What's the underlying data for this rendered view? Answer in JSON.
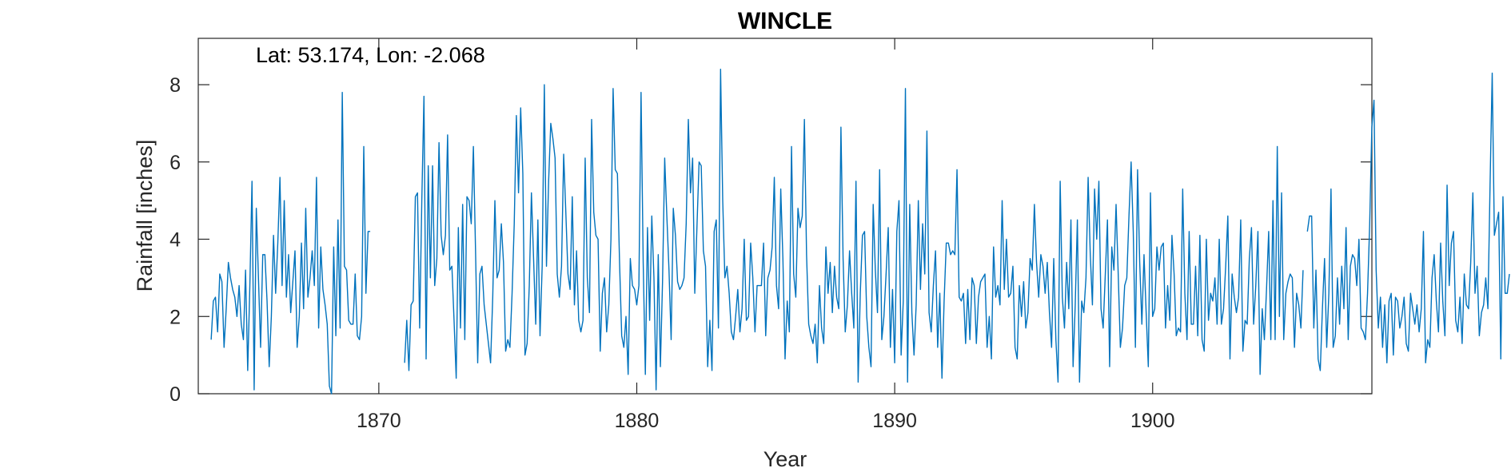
{
  "chart_data": {
    "type": "line",
    "title": "WINCLE",
    "annotation": "Lat: 53.174, Lon: -2.068",
    "xlabel": "Year",
    "ylabel": "Rainfall [inches]",
    "xlim": [
      1863.0,
      1908.5
    ],
    "ylim": [
      0,
      9.2
    ],
    "xticks": [
      1870,
      1880,
      1890,
      1900
    ],
    "yticks": [
      0,
      2,
      4,
      6,
      8
    ],
    "grid": false,
    "line_color": "#0072BD",
    "series": [
      {
        "start": 1863.5,
        "step": 0.08333,
        "values": [
          1.4,
          2.4,
          2.5,
          1.6,
          3.1,
          2.9,
          1.2,
          2.2,
          3.4,
          3.0,
          2.7,
          2.5,
          2.0,
          2.8,
          1.8,
          1.4,
          3.2,
          0.6,
          2.8,
          5.5,
          0.1,
          4.8,
          3.0,
          1.2,
          3.6,
          3.6,
          2.4,
          0.7,
          2.0,
          4.1,
          2.6,
          3.9,
          5.6,
          2.8,
          5.0,
          2.5,
          3.6,
          2.1,
          2.9,
          3.7,
          1.2,
          2.0,
          3.9,
          2.2,
          4.8,
          2.5,
          3.0,
          3.7,
          2.8,
          5.6,
          1.7,
          3.8,
          2.7,
          2.3,
          1.8,
          0.2,
          0.0,
          3.8,
          1.5,
          4.5,
          1.7,
          7.8,
          3.3,
          3.2,
          1.9,
          1.8,
          1.8,
          3.1,
          1.5,
          1.4,
          2.0,
          6.4,
          2.6,
          4.2,
          4.2,
          null,
          null,
          null,
          null,
          null,
          null,
          null,
          null,
          null,
          null,
          null,
          null,
          null,
          null,
          null,
          0.8,
          1.9,
          0.6,
          2.3,
          2.4,
          5.1,
          5.2,
          1.7,
          5.0,
          7.7,
          0.9,
          5.9,
          3.0,
          5.9,
          2.8,
          3.5,
          6.5,
          4.1,
          3.6,
          4.1,
          6.7,
          3.2,
          3.3,
          1.9,
          0.4,
          4.3,
          1.7,
          4.9,
          1.4,
          5.1,
          5.0,
          4.4,
          6.4,
          3.7,
          0.8,
          3.1,
          3.3,
          2.3,
          1.8,
          1.3,
          0.8,
          2.5,
          5.0,
          3.0,
          3.2,
          4.4,
          3.4,
          1.1,
          1.4,
          1.2,
          2.6,
          4.4,
          7.2,
          5.2,
          7.4,
          5.7,
          1.0,
          1.3,
          2.8,
          5.2,
          3.5,
          1.8,
          4.5,
          1.5,
          3.3,
          8.0,
          3.3,
          5.5,
          7.0,
          6.6,
          6.1,
          3.1,
          2.5,
          3.3,
          6.2,
          4.7,
          3.1,
          2.7,
          5.1,
          2.3,
          3.7,
          1.9,
          1.6,
          1.9,
          6.1,
          3.0,
          2.1,
          7.1,
          4.7,
          4.1,
          4.0,
          1.1,
          2.6,
          3.0,
          1.6,
          2.3,
          4.0,
          7.9,
          5.8,
          5.7,
          3.4,
          1.5,
          1.2,
          2.0,
          0.5,
          3.5,
          2.8,
          2.7,
          2.3,
          2.8,
          7.8,
          3.4,
          0.5,
          4.3,
          1.9,
          4.6,
          3.0,
          0.1,
          3.6,
          0.7,
          2.9,
          6.1,
          4.6,
          3.2,
          1.4,
          4.8,
          4.1,
          2.9,
          2.7,
          2.8,
          3.0,
          4.4,
          7.1,
          5.2,
          6.1,
          2.6,
          4.3,
          6.0,
          5.9,
          3.7,
          3.3,
          0.7,
          1.9,
          0.6,
          4.2,
          4.5,
          1.7,
          8.4,
          5.0,
          3.0,
          3.3,
          2.6,
          1.6,
          1.4,
          2.0,
          2.7,
          1.6,
          2.2,
          4.0,
          1.9,
          2.0,
          3.9,
          3.0,
          1.6,
          2.8,
          2.8,
          2.8,
          3.9,
          1.5,
          3.0,
          3.2,
          3.8,
          5.6,
          2.8,
          2.2,
          5.3,
          3.5,
          0.9,
          2.4,
          1.6,
          6.4,
          3.1,
          2.5,
          4.8,
          4.3,
          4.6,
          7.1,
          3.6,
          1.8,
          1.5,
          1.3,
          1.8,
          0.8,
          2.8,
          1.7,
          1.3,
          3.8,
          2.6,
          3.4,
          2.1,
          3.3,
          2.5,
          2.2,
          6.9,
          3.5,
          1.6,
          2.3,
          3.7,
          2.6,
          1.7,
          5.5,
          0.3,
          2.6,
          4.1,
          4.2,
          2.0,
          1.2,
          0.7,
          4.9,
          3.2,
          2.1,
          5.8,
          1.4,
          2.0,
          3.1,
          4.3,
          1.2,
          2.7,
          0.8,
          4.2,
          5.0,
          1.0,
          2.4,
          7.9,
          0.3,
          4.9,
          2.1,
          1.0,
          2.3,
          5.0,
          2.7,
          4.4,
          3.1,
          6.8,
          2.1,
          1.6,
          2.8,
          3.7,
          1.2,
          2.6,
          0.4,
          2.4,
          3.9,
          3.9,
          3.6,
          3.7,
          3.6,
          5.8,
          2.5,
          2.4,
          2.6,
          1.3,
          2.7,
          1.4,
          3.0,
          2.8,
          1.3,
          2.5,
          2.9,
          3.0,
          3.1,
          1.2,
          2.0,
          0.9,
          3.8,
          2.5,
          2.8,
          2.3,
          5.0,
          2.7,
          4.0,
          2.5,
          2.6,
          3.3,
          1.2,
          0.9,
          2.8,
          2.0,
          2.9,
          1.7,
          2.1,
          3.5,
          3.2,
          4.9,
          3.4,
          2.5,
          3.6,
          3.3,
          2.6,
          3.4,
          2.1,
          1.2,
          3.5,
          1.4,
          0.3,
          5.5,
          2.5,
          1.7,
          3.4,
          2.2,
          4.5,
          0.7,
          2.3,
          4.5,
          0.3,
          2.4,
          2.1,
          3.0,
          5.6,
          3.6,
          2.3,
          5.3,
          4.0,
          5.5,
          2.2,
          1.7,
          3.1,
          4.5,
          0.7,
          3.8,
          3.2,
          4.9,
          3.1,
          1.2,
          1.7,
          2.8,
          3.0,
          4.6,
          6.0,
          4.2,
          1.2,
          5.8,
          3.4,
          1.8,
          3.6,
          2.1,
          0.7,
          5.2,
          2.0,
          2.2,
          3.8,
          3.2,
          3.8,
          3.9,
          1.7,
          2.8,
          1.9,
          4.1,
          3.1,
          1.5,
          1.7,
          1.6,
          5.3,
          2.6,
          1.4,
          4.2,
          1.8,
          1.8,
          3.3,
          1.5,
          4.1,
          1.4,
          1.1,
          4.0,
          1.9,
          2.6,
          2.4,
          3.0,
          1.8,
          4.0,
          1.8,
          2.2,
          3.3,
          4.6,
          0.9,
          3.1,
          2.5,
          2.1,
          2.5,
          4.5,
          1.1,
          1.9,
          1.8,
          3.5,
          4.3,
          1.8,
          2.8,
          4.2,
          0.5,
          2.2,
          1.4,
          2.7,
          4.2,
          1.4,
          5.0,
          1.4,
          6.4,
          2.0,
          5.2,
          1.4,
          2.6,
          2.9,
          3.1,
          3.0,
          1.2,
          2.6,
          2.3,
          1.7,
          3.2,
          null,
          4.2,
          4.6,
          4.6,
          1.7,
          3.2,
          0.9,
          0.6,
          2.2,
          3.5,
          1.2,
          2.6,
          5.3,
          1.2,
          1.5,
          3.0,
          1.8,
          3.3,
          2.2,
          4.3,
          1.4,
          3.3,
          3.6,
          3.5,
          2.8,
          4.0,
          1.7,
          1.6,
          1.4,
          2.6,
          4.4,
          6.9,
          7.6,
          3.2,
          1.7,
          2.5,
          1.2,
          2.3,
          0.8,
          2.4,
          2.6,
          1.0,
          2.5,
          2.4,
          1.7,
          2.0,
          2.5,
          1.3,
          1.1,
          2.6,
          2.2,
          1.8,
          2.3,
          1.6,
          2.2,
          4.2,
          0.8,
          1.4,
          1.2,
          3.0,
          3.6,
          2.4,
          1.6,
          3.9,
          2.4,
          1.5,
          5.4,
          2.8,
          3.9,
          4.2,
          1.9,
          1.6,
          2.5,
          1.3,
          3.1,
          2.3,
          2.2,
          3.4,
          5.2,
          2.6,
          3.3,
          1.5,
          2.1,
          2.3,
          3.0,
          2.2,
          5.4,
          8.3,
          4.1,
          4.4,
          4.7,
          0.9,
          5.1,
          2.6,
          2.6,
          3.1
        ]
      }
    ]
  }
}
